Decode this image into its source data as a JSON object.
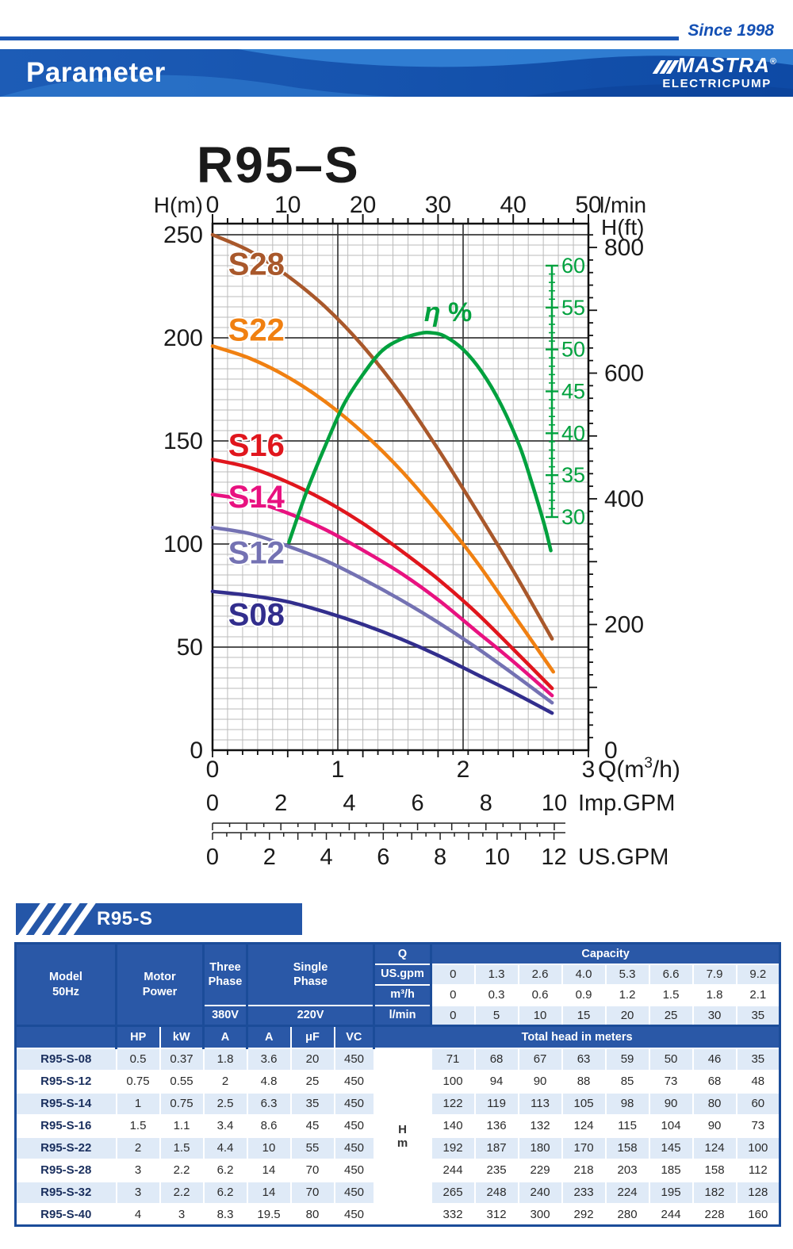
{
  "header": {
    "since": "Since 1998",
    "title": "Parameter",
    "brand": "MASTRA",
    "brand_mark": "®",
    "brand_sub": "ELECTRICPUMP"
  },
  "chart_data": {
    "type": "line",
    "title": "R95–S",
    "axes": {
      "top": {
        "label": "l/min",
        "min": 0,
        "max": 50,
        "major_ticks": [
          0,
          10,
          20,
          30,
          40,
          50
        ],
        "minor_step": 2
      },
      "bottom": {
        "label": "Q(m³/h)",
        "min": 0,
        "max": 3,
        "major_ticks": [
          0,
          1,
          2,
          3
        ]
      },
      "left": {
        "label": "H(m)",
        "min": 0,
        "max": 250,
        "major_ticks": [
          0,
          50,
          100,
          150,
          200,
          250
        ],
        "minor_step": 5
      },
      "right": {
        "label": "H(ft)",
        "major_ticks": [
          0,
          200,
          400,
          600,
          800
        ],
        "minor_step": 20
      },
      "efficiency": {
        "label": "η %",
        "min": 30,
        "max": 60,
        "major_ticks": [
          30,
          35,
          40,
          45,
          50,
          55,
          60
        ],
        "minor_step": 1,
        "color": "#00a13e"
      },
      "imp_gpm": {
        "label": "Imp.GPM",
        "major_ticks": [
          0,
          2,
          4,
          6,
          8,
          10
        ],
        "max": 10.3,
        "m3h_per_unit": 0.27276
      },
      "us_gpm": {
        "label": "US.GPM",
        "major_ticks": [
          0,
          2,
          4,
          6,
          8,
          10,
          12
        ],
        "max": 12.4,
        "m3h_per_unit": 0.22712
      }
    },
    "grid": true,
    "series": [
      {
        "name": "S28",
        "color": "#a9582b",
        "label_pos": [
          0.35,
          236
        ],
        "points": [
          [
            0,
            250
          ],
          [
            0.3,
            242
          ],
          [
            0.6,
            230
          ],
          [
            0.9,
            215
          ],
          [
            1.2,
            196
          ],
          [
            1.5,
            173
          ],
          [
            1.8,
            146
          ],
          [
            2.1,
            117
          ],
          [
            2.4,
            87
          ],
          [
            2.71,
            54
          ]
        ]
      },
      {
        "name": "S22",
        "color": "#f08011",
        "label_pos": [
          0.35,
          204
        ],
        "points": [
          [
            0,
            196
          ],
          [
            0.3,
            190
          ],
          [
            0.6,
            181
          ],
          [
            0.9,
            169
          ],
          [
            1.2,
            154
          ],
          [
            1.5,
            136
          ],
          [
            1.8,
            115
          ],
          [
            2.1,
            92
          ],
          [
            2.4,
            66
          ],
          [
            2.72,
            38
          ]
        ]
      },
      {
        "name": "S16",
        "color": "#e0161d",
        "label_pos": [
          0.35,
          148
        ],
        "points": [
          [
            0,
            141
          ],
          [
            0.3,
            137
          ],
          [
            0.6,
            130
          ],
          [
            0.9,
            121
          ],
          [
            1.2,
            110
          ],
          [
            1.5,
            97
          ],
          [
            1.8,
            83
          ],
          [
            2.1,
            67
          ],
          [
            2.4,
            49
          ],
          [
            2.71,
            30
          ]
        ]
      },
      {
        "name": "S14",
        "color": "#e81280",
        "label_pos": [
          0.35,
          123
        ],
        "points": [
          [
            0,
            124
          ],
          [
            0.3,
            121
          ],
          [
            0.6,
            115
          ],
          [
            0.9,
            107
          ],
          [
            1.2,
            97
          ],
          [
            1.5,
            86
          ],
          [
            1.8,
            73
          ],
          [
            2.1,
            58
          ],
          [
            2.4,
            43
          ],
          [
            2.71,
            26.5
          ]
        ]
      },
      {
        "name": "S12",
        "color": "#7472b3",
        "label_pos": [
          0.35,
          96
        ],
        "points": [
          [
            0,
            108
          ],
          [
            0.3,
            105
          ],
          [
            0.6,
            99
          ],
          [
            0.9,
            92
          ],
          [
            1.2,
            83
          ],
          [
            1.5,
            73
          ],
          [
            1.8,
            62
          ],
          [
            2.1,
            50
          ],
          [
            2.4,
            37
          ],
          [
            2.71,
            23
          ]
        ]
      },
      {
        "name": "S08",
        "color": "#322e8d",
        "label_pos": [
          0.35,
          66
        ],
        "points": [
          [
            0,
            77
          ],
          [
            0.3,
            75
          ],
          [
            0.6,
            72
          ],
          [
            0.9,
            67
          ],
          [
            1.2,
            61
          ],
          [
            1.5,
            54
          ],
          [
            1.8,
            46
          ],
          [
            2.1,
            37
          ],
          [
            2.4,
            28
          ],
          [
            2.71,
            18
          ]
        ]
      }
    ],
    "efficiency_curve": {
      "name": "η %",
      "color": "#00a13e",
      "label_pos": [
        1.88,
        54.5
      ],
      "points": [
        [
          0.61,
          27
        ],
        [
          0.75,
          33
        ],
        [
          0.9,
          38.5
        ],
        [
          1.05,
          43.5
        ],
        [
          1.2,
          47
        ],
        [
          1.35,
          49.8
        ],
        [
          1.5,
          51.2
        ],
        [
          1.65,
          51.9
        ],
        [
          1.74,
          52
        ],
        [
          1.85,
          51.6
        ],
        [
          2.0,
          50
        ],
        [
          2.15,
          47.3
        ],
        [
          2.3,
          43.5
        ],
        [
          2.45,
          38.5
        ],
        [
          2.55,
          34
        ],
        [
          2.65,
          29
        ],
        [
          2.7,
          26
        ]
      ]
    }
  },
  "table_section": {
    "banner_title": "R95-S"
  },
  "table": {
    "head": {
      "model1": "Model",
      "model2": "50Hz",
      "motor1": "Motor",
      "motor2": "Power",
      "three1": "Three",
      "three2": "Phase",
      "single1": "Single",
      "single2": "Phase",
      "v380": "380V",
      "v220": "220V",
      "q": "Q",
      "capacity": "Capacity",
      "us": "US.gpm",
      "m3h": "m³/h",
      "lmin": "l/min",
      "total": "Total head in meters",
      "hp": "HP",
      "kw": "kW",
      "a": "A",
      "a2": "A",
      "uf": "μF",
      "vc": "VC",
      "hm1": "H",
      "hm2": "m"
    },
    "capacity": {
      "us": [
        "0",
        "1.3",
        "2.6",
        "4.0",
        "5.3",
        "6.6",
        "7.9",
        "9.2"
      ],
      "m3h": [
        "0",
        "0.3",
        "0.6",
        "0.9",
        "1.2",
        "1.5",
        "1.8",
        "2.1"
      ],
      "lmin": [
        "0",
        "5",
        "10",
        "15",
        "20",
        "25",
        "30",
        "35"
      ]
    },
    "rows": [
      {
        "model": "R95-S-08",
        "hp": "0.5",
        "kw": "0.37",
        "a3": "1.8",
        "a1": "3.6",
        "uf": "20",
        "vc": "450",
        "heads": [
          "71",
          "68",
          "67",
          "63",
          "59",
          "50",
          "46",
          "35"
        ]
      },
      {
        "model": "R95-S-12",
        "hp": "0.75",
        "kw": "0.55",
        "a3": "2",
        "a1": "4.8",
        "uf": "25",
        "vc": "450",
        "heads": [
          "100",
          "94",
          "90",
          "88",
          "85",
          "73",
          "68",
          "48"
        ]
      },
      {
        "model": "R95-S-14",
        "hp": "1",
        "kw": "0.75",
        "a3": "2.5",
        "a1": "6.3",
        "uf": "35",
        "vc": "450",
        "heads": [
          "122",
          "119",
          "113",
          "105",
          "98",
          "90",
          "80",
          "60"
        ]
      },
      {
        "model": "R95-S-16",
        "hp": "1.5",
        "kw": "1.1",
        "a3": "3.4",
        "a1": "8.6",
        "uf": "45",
        "vc": "450",
        "heads": [
          "140",
          "136",
          "132",
          "124",
          "115",
          "104",
          "90",
          "73"
        ]
      },
      {
        "model": "R95-S-22",
        "hp": "2",
        "kw": "1.5",
        "a3": "4.4",
        "a1": "10",
        "uf": "55",
        "vc": "450",
        "heads": [
          "192",
          "187",
          "180",
          "170",
          "158",
          "145",
          "124",
          "100"
        ]
      },
      {
        "model": "R95-S-28",
        "hp": "3",
        "kw": "2.2",
        "a3": "6.2",
        "a1": "14",
        "uf": "70",
        "vc": "450",
        "heads": [
          "244",
          "235",
          "229",
          "218",
          "203",
          "185",
          "158",
          "112"
        ]
      },
      {
        "model": "R95-S-32",
        "hp": "3",
        "kw": "2.2",
        "a3": "6.2",
        "a1": "14",
        "uf": "70",
        "vc": "450",
        "heads": [
          "265",
          "248",
          "240",
          "233",
          "224",
          "195",
          "182",
          "128"
        ]
      },
      {
        "model": "R95-S-40",
        "hp": "4",
        "kw": "3",
        "a3": "8.3",
        "a1": "19.5",
        "uf": "80",
        "vc": "450",
        "heads": [
          "332",
          "312",
          "300",
          "292",
          "280",
          "244",
          "228",
          "160"
        ]
      }
    ]
  },
  "colors": {
    "table_header": "#2a58a7",
    "row_tint": "#dfeaf7",
    "table_border": "#1b4c99",
    "banner_base": "#1a57b2",
    "accent_line": "#1b57b5"
  }
}
